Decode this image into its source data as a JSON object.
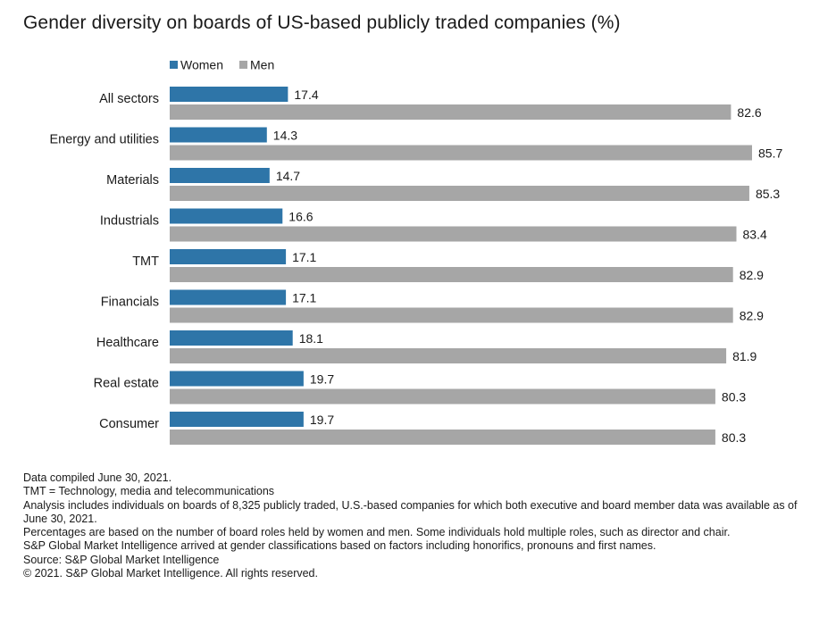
{
  "chart_data": {
    "type": "bar",
    "orientation": "horizontal",
    "title": "Gender diversity on boards of US-based publicly traded companies (%)",
    "categories": [
      "All sectors",
      "Energy and utilities",
      "Materials",
      "Industrials",
      "TMT",
      "Financials",
      "Healthcare",
      "Real estate",
      "Consumer"
    ],
    "series": [
      {
        "name": "Women",
        "color": "#2e75a8",
        "values": [
          17.4,
          14.3,
          14.7,
          16.6,
          17.1,
          17.1,
          18.1,
          19.7,
          19.7
        ]
      },
      {
        "name": "Men",
        "color": "#a6a6a6",
        "values": [
          82.6,
          85.7,
          85.3,
          83.4,
          82.9,
          82.9,
          81.9,
          80.3,
          80.3
        ]
      }
    ],
    "value_labels": {
      "Women": [
        "17.4",
        "14.3",
        "14.7",
        "16.6",
        "17.1",
        "17.1",
        "18.1",
        "19.7",
        "19.7"
      ],
      "Men": [
        "82.6",
        "85.7",
        "85.3",
        "83.4",
        "82.9",
        "82.9",
        "81.9",
        "80.3",
        "80.3"
      ]
    },
    "xlim": [
      0,
      85.7
    ],
    "grid": false,
    "legend": "top"
  },
  "notes": [
    "Data compiled June 30, 2021.",
    "TMT = Technology, media and telecommunications",
    "Analysis includes individuals on boards of 8,325 publicly traded, U.S.-based companies for which both executive and board member data was available as of June 30, 2021.",
    "Percentages are based on the number of board roles held by women and men. Some individuals hold multiple roles, such as director and chair.",
    "S&P Global Market Intelligence arrived at gender classifications based on factors including honorifics, pronouns and first names.",
    "Source: S&P Global Market Intelligence",
    "© 2021. S&P Global Market Intelligence. All rights reserved."
  ]
}
